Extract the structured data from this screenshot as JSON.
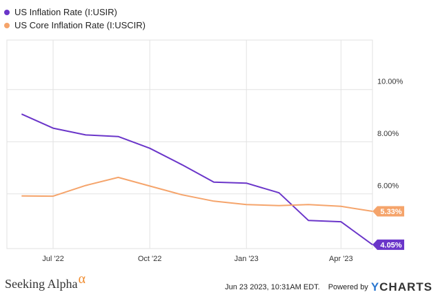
{
  "legend": [
    {
      "label": "US Inflation Rate (I:USIR)",
      "color": "#6a35c9"
    },
    {
      "label": "US Core Inflation Rate (I:USCIR)",
      "color": "#f5a46b"
    }
  ],
  "chart_data": {
    "type": "line",
    "x": [
      "2022-06-01",
      "2022-07-01",
      "2022-08-01",
      "2022-09-01",
      "2022-10-01",
      "2022-11-01",
      "2022-12-01",
      "2023-01-01",
      "2023-02-01",
      "2023-03-01",
      "2023-04-01",
      "2023-05-01"
    ],
    "series": [
      {
        "name": "US Inflation Rate (I:USIR)",
        "color": "#6a35c9",
        "values": [
          9.06,
          8.52,
          8.26,
          8.2,
          7.75,
          7.11,
          6.45,
          6.41,
          6.04,
          4.98,
          4.93,
          4.05
        ],
        "last_label": "4.05%"
      },
      {
        "name": "US Core Inflation Rate (I:USCIR)",
        "color": "#f5a46b",
        "values": [
          5.92,
          5.91,
          6.32,
          6.63,
          6.3,
          5.96,
          5.72,
          5.59,
          5.55,
          5.59,
          5.52,
          5.33
        ],
        "last_label": "5.33%"
      }
    ],
    "x_ticks": [
      "Jul '22",
      "Oct '22",
      "Jan '23",
      "Apr '23"
    ],
    "x_tick_dates": [
      "2022-07-01",
      "2022-10-01",
      "2023-01-01",
      "2023-04-01"
    ],
    "y_ticks": [
      "10.00%",
      "8.00%",
      "6.00%"
    ],
    "y_tick_values": [
      10,
      8,
      6
    ],
    "ylim": [
      3.9,
      11.9
    ],
    "grid": true,
    "legend_position": "top-left",
    "title": "",
    "xlabel": "",
    "ylabel": ""
  },
  "footer": {
    "brand": "Seeking Alpha",
    "brand_mark": "α",
    "timestamp": "Jun 23 2023, 10:31AM EDT.",
    "powered_by": "Powered by",
    "ycharts": "CHARTS",
    "ycharts_y": "Y"
  }
}
